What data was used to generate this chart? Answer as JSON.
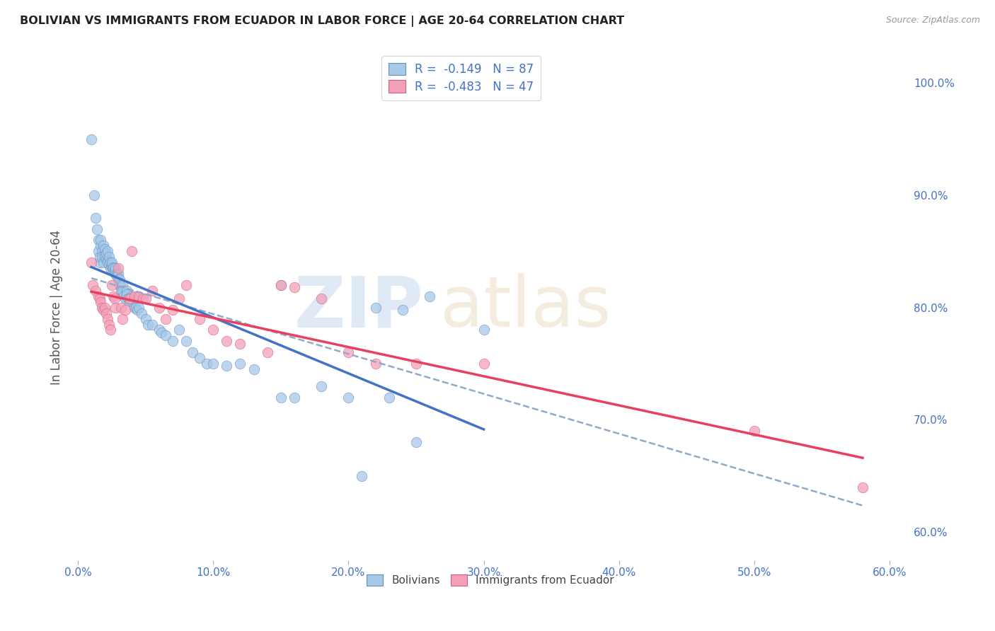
{
  "title": "BOLIVIAN VS IMMIGRANTS FROM ECUADOR IN LABOR FORCE | AGE 20-64 CORRELATION CHART",
  "source": "Source: ZipAtlas.com",
  "ylabel": "In Labor Force | Age 20-64",
  "xlim": [
    -0.005,
    0.615
  ],
  "ylim": [
    0.575,
    1.025
  ],
  "xticks": [
    0.0,
    0.1,
    0.2,
    0.3,
    0.4,
    0.5,
    0.6
  ],
  "xticklabels": [
    "0.0%",
    "10.0%",
    "20.0%",
    "30.0%",
    "40.0%",
    "50.0%",
    "60.0%"
  ],
  "yticks_right": [
    0.6,
    0.7,
    0.8,
    0.9,
    1.0
  ],
  "ytick_right_labels": [
    "60.0%",
    "70.0%",
    "80.0%",
    "90.0%",
    "100.0%"
  ],
  "bolivians_R": -0.149,
  "bolivians_N": 87,
  "ecuador_R": -0.483,
  "ecuador_N": 47,
  "scatter_color_bolivians": "#a8c8e8",
  "scatter_edge_bolivians": "#6090c0",
  "scatter_color_ecuador": "#f4a0b8",
  "scatter_edge_ecuador": "#d06080",
  "line_color_bolivians": "#4472c4",
  "line_color_ecuador": "#e84060",
  "dashed_line_color": "#90aac8",
  "bolivians_x": [
    0.01,
    0.012,
    0.013,
    0.014,
    0.015,
    0.015,
    0.016,
    0.016,
    0.017,
    0.017,
    0.018,
    0.018,
    0.019,
    0.019,
    0.02,
    0.02,
    0.02,
    0.021,
    0.021,
    0.022,
    0.022,
    0.022,
    0.023,
    0.023,
    0.024,
    0.024,
    0.025,
    0.025,
    0.025,
    0.026,
    0.026,
    0.027,
    0.027,
    0.028,
    0.028,
    0.029,
    0.029,
    0.03,
    0.03,
    0.031,
    0.031,
    0.032,
    0.032,
    0.033,
    0.033,
    0.034,
    0.035,
    0.036,
    0.036,
    0.037,
    0.038,
    0.038,
    0.04,
    0.041,
    0.042,
    0.043,
    0.044,
    0.045,
    0.047,
    0.05,
    0.052,
    0.055,
    0.06,
    0.062,
    0.065,
    0.07,
    0.075,
    0.08,
    0.085,
    0.09,
    0.095,
    0.1,
    0.11,
    0.12,
    0.13,
    0.15,
    0.16,
    0.18,
    0.2,
    0.21,
    0.23,
    0.25,
    0.15,
    0.22,
    0.24,
    0.26,
    0.3
  ],
  "bolivians_y": [
    0.95,
    0.9,
    0.88,
    0.87,
    0.86,
    0.85,
    0.84,
    0.845,
    0.855,
    0.86,
    0.85,
    0.845,
    0.84,
    0.855,
    0.848,
    0.852,
    0.845,
    0.843,
    0.848,
    0.842,
    0.85,
    0.84,
    0.838,
    0.845,
    0.84,
    0.835,
    0.836,
    0.838,
    0.84,
    0.836,
    0.835,
    0.833,
    0.832,
    0.83,
    0.835,
    0.83,
    0.828,
    0.83,
    0.825,
    0.825,
    0.82,
    0.818,
    0.815,
    0.82,
    0.815,
    0.81,
    0.808,
    0.815,
    0.812,
    0.808,
    0.808,
    0.806,
    0.81,
    0.805,
    0.8,
    0.8,
    0.798,
    0.8,
    0.795,
    0.79,
    0.785,
    0.785,
    0.78,
    0.778,
    0.775,
    0.77,
    0.78,
    0.77,
    0.76,
    0.755,
    0.75,
    0.75,
    0.748,
    0.75,
    0.745,
    0.72,
    0.72,
    0.73,
    0.72,
    0.65,
    0.72,
    0.68,
    0.82,
    0.8,
    0.798,
    0.81,
    0.78
  ],
  "ecuador_x": [
    0.01,
    0.011,
    0.013,
    0.015,
    0.016,
    0.017,
    0.018,
    0.019,
    0.02,
    0.021,
    0.022,
    0.023,
    0.024,
    0.025,
    0.026,
    0.027,
    0.028,
    0.03,
    0.032,
    0.033,
    0.035,
    0.038,
    0.04,
    0.042,
    0.045,
    0.048,
    0.05,
    0.055,
    0.06,
    0.065,
    0.07,
    0.075,
    0.08,
    0.09,
    0.1,
    0.11,
    0.12,
    0.14,
    0.15,
    0.16,
    0.18,
    0.2,
    0.22,
    0.25,
    0.3,
    0.5,
    0.58
  ],
  "ecuador_y": [
    0.84,
    0.82,
    0.815,
    0.81,
    0.808,
    0.805,
    0.8,
    0.798,
    0.8,
    0.795,
    0.79,
    0.785,
    0.78,
    0.82,
    0.81,
    0.808,
    0.8,
    0.835,
    0.8,
    0.79,
    0.798,
    0.808,
    0.85,
    0.81,
    0.81,
    0.808,
    0.808,
    0.815,
    0.8,
    0.79,
    0.798,
    0.808,
    0.82,
    0.79,
    0.78,
    0.77,
    0.768,
    0.76,
    0.82,
    0.818,
    0.808,
    0.76,
    0.75,
    0.75,
    0.75,
    0.69,
    0.64
  ]
}
